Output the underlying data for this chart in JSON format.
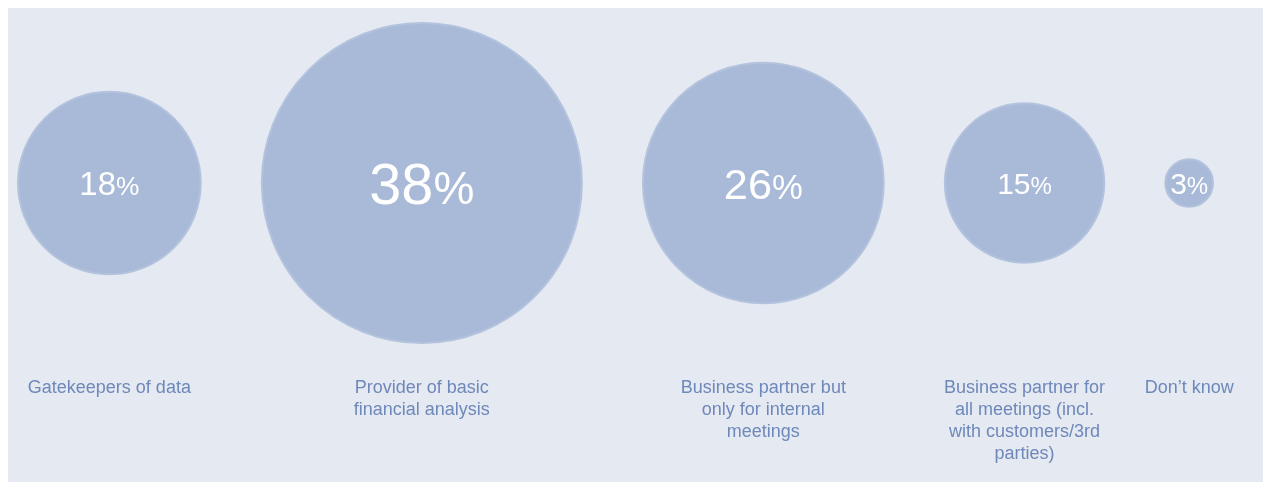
{
  "chart_data": {
    "type": "other",
    "categories": [
      "Gatekeepers of data",
      "Provider of basic financial analysis",
      "Business partner but only for internal meetings",
      "Business partner for all meetings (incl. with customers/3rd parties)",
      "Don’t know"
    ],
    "values": [
      18,
      38,
      26,
      15,
      3
    ],
    "value_labels": [
      "18%",
      "38%",
      "26%",
      "15%",
      "3%"
    ],
    "colors": [
      "#a9b9d8",
      "#a9b9d8",
      "#a9b9d8",
      "#a9b9d8",
      "#a9b9d8"
    ]
  }
}
